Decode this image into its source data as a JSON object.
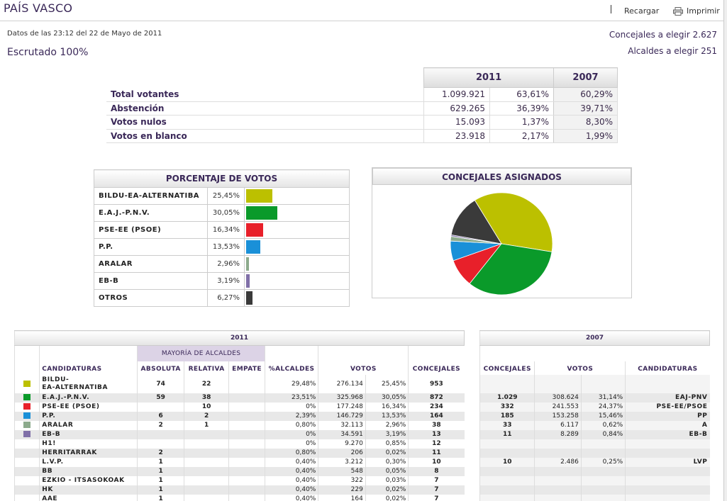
{
  "header": {
    "title": "PAÍS VASCO",
    "reload_label": "Recargar",
    "print_label": "Imprimir"
  },
  "info": {
    "date_line": "Datos de las 23:12  del 22 de Mayo de 2011",
    "escrutado": "Escrutado 100%",
    "concejales": "Concejales a elegir 2.627",
    "alcaldes": "Alcaldes a elegir 251"
  },
  "summary": {
    "year_current": "2011",
    "year_previous": "2007",
    "rows": [
      {
        "label": "Total votantes",
        "votes": "1.099.921",
        "pct": "63,61%",
        "pct_prev": "60,29%"
      },
      {
        "label": "Abstención",
        "votes": "629.265",
        "pct": "36,39%",
        "pct_prev": "39,71%"
      },
      {
        "label": "Votos nulos",
        "votes": "15.093",
        "pct": "1,37%",
        "pct_prev": "8,30%"
      },
      {
        "label": "Votos en blanco",
        "votes": "23.918",
        "pct": "2,17%",
        "pct_prev": "1,99%"
      }
    ]
  },
  "vote_pct": {
    "title": "PORCENTAJE DE VOTOS",
    "rows": [
      {
        "name": "BILDU-EA-ALTERNATIBA",
        "pct_label": "25,45%",
        "value": 25.45,
        "color": "#bcc000"
      },
      {
        "name": "E.A.J.-P.N.V.",
        "pct_label": "30,05%",
        "value": 30.05,
        "color": "#0a9a2a"
      },
      {
        "name": "PSE-EE (PSOE)",
        "pct_label": "16,34%",
        "value": 16.34,
        "color": "#e8202a"
      },
      {
        "name": "P.P.",
        "pct_label": "13,53%",
        "value": 13.53,
        "color": "#1a90d8"
      },
      {
        "name": "ARALAR",
        "pct_label": "2,96%",
        "value": 2.96,
        "color": "#8caa8c"
      },
      {
        "name": "EB-B",
        "pct_label": "3,19%",
        "value": 3.19,
        "color": "#8070a8"
      },
      {
        "name": "OTROS",
        "pct_label": "6,27%",
        "value": 6.27,
        "color": "#3a3a3a"
      }
    ]
  },
  "chart_data": {
    "type": "pie",
    "title": "CONCEJALES ASIGNADOS",
    "categories": [
      "BILDU-EA-ALTERNATIBA",
      "E.A.J.-P.N.V.",
      "PSE-EE (PSOE)",
      "P.P.",
      "ARALAR",
      "EB-B",
      "OTROS"
    ],
    "values": [
      953,
      872,
      234,
      164,
      38,
      13,
      353
    ],
    "colors": [
      "#bcc000",
      "#0a9a2a",
      "#e8202a",
      "#1a90d8",
      "#8caa8c",
      "#8070a8",
      "#3a3a3a"
    ]
  },
  "results": {
    "year_current": "2011",
    "year_previous": "2007",
    "mayoria_label": "MAYORÍA DE ALCALDES",
    "headers": {
      "candidaturas": "CANDIDATURAS",
      "absoluta": "ABSOLUTA",
      "relativa": "RELATIVA",
      "empate": "EMPATE",
      "pct_alcaldes": "%ALCALDES",
      "votos": "VOTOS",
      "concejales": "CONCEJALES"
    },
    "rows": [
      {
        "color": "#bcc000",
        "name": "BILDU-\nEA-ALTERNATIBA",
        "abs": "74",
        "rel": "22",
        "emp": "",
        "pct_alc": "29,48%",
        "votes": "276.134",
        "vpct": "25,45%",
        "conc": "953",
        "p_conc": "",
        "p_votes": "",
        "p_pct": "",
        "p_cand": ""
      },
      {
        "color": "#0a9a2a",
        "name": "E.A.J.-P.N.V.",
        "abs": "59",
        "rel": "38",
        "emp": "",
        "pct_alc": "23,51%",
        "votes": "325.968",
        "vpct": "30,05%",
        "conc": "872",
        "p_conc": "1.029",
        "p_votes": "308.624",
        "p_pct": "31,14%",
        "p_cand": "EAJ-PNV"
      },
      {
        "color": "#e8202a",
        "name": "PSE-EE (PSOE)",
        "abs": "",
        "rel": "10",
        "emp": "",
        "pct_alc": "0%",
        "votes": "177.248",
        "vpct": "16,34%",
        "conc": "234",
        "p_conc": "332",
        "p_votes": "241.553",
        "p_pct": "24,37%",
        "p_cand": "PSE-EE/PSOE"
      },
      {
        "color": "#1a90d8",
        "name": "P.P.",
        "abs": "6",
        "rel": "2",
        "emp": "",
        "pct_alc": "2,39%",
        "votes": "146.729",
        "vpct": "13,53%",
        "conc": "164",
        "p_conc": "185",
        "p_votes": "153.258",
        "p_pct": "15,46%",
        "p_cand": "PP"
      },
      {
        "color": "#8caa8c",
        "name": "ARALAR",
        "abs": "2",
        "rel": "1",
        "emp": "",
        "pct_alc": "0,80%",
        "votes": "32.113",
        "vpct": "2,96%",
        "conc": "38",
        "p_conc": "33",
        "p_votes": "6.117",
        "p_pct": "0,62%",
        "p_cand": "A"
      },
      {
        "color": "#8070a8",
        "name": "EB-B",
        "abs": "",
        "rel": "",
        "emp": "",
        "pct_alc": "0%",
        "votes": "34.591",
        "vpct": "3,19%",
        "conc": "13",
        "p_conc": "11",
        "p_votes": "8.289",
        "p_pct": "0,84%",
        "p_cand": "EB-B"
      },
      {
        "color": "",
        "name": "H1!",
        "abs": "",
        "rel": "",
        "emp": "",
        "pct_alc": "0%",
        "votes": "9.270",
        "vpct": "0,85%",
        "conc": "12",
        "p_conc": "",
        "p_votes": "",
        "p_pct": "",
        "p_cand": ""
      },
      {
        "color": "",
        "name": "HERRITARRAK",
        "abs": "2",
        "rel": "",
        "emp": "",
        "pct_alc": "0,80%",
        "votes": "206",
        "vpct": "0,02%",
        "conc": "11",
        "p_conc": "",
        "p_votes": "",
        "p_pct": "",
        "p_cand": ""
      },
      {
        "color": "",
        "name": "L.V.P.",
        "abs": "1",
        "rel": "",
        "emp": "",
        "pct_alc": "0,40%",
        "votes": "3.212",
        "vpct": "0,30%",
        "conc": "10",
        "p_conc": "10",
        "p_votes": "2.486",
        "p_pct": "0,25%",
        "p_cand": "LVP"
      },
      {
        "color": "",
        "name": "BB",
        "abs": "1",
        "rel": "",
        "emp": "",
        "pct_alc": "0,40%",
        "votes": "548",
        "vpct": "0,05%",
        "conc": "8",
        "p_conc": "",
        "p_votes": "",
        "p_pct": "",
        "p_cand": ""
      },
      {
        "color": "",
        "name": "EZKIO - ITSASOKOAK",
        "abs": "1",
        "rel": "",
        "emp": "",
        "pct_alc": "0,40%",
        "votes": "322",
        "vpct": "0,03%",
        "conc": "7",
        "p_conc": "",
        "p_votes": "",
        "p_pct": "",
        "p_cand": ""
      },
      {
        "color": "",
        "name": "HK",
        "abs": "1",
        "rel": "",
        "emp": "",
        "pct_alc": "0,40%",
        "votes": "229",
        "vpct": "0,02%",
        "conc": "7",
        "p_conc": "",
        "p_votes": "",
        "p_pct": "",
        "p_cand": ""
      },
      {
        "color": "",
        "name": "AAE",
        "abs": "1",
        "rel": "",
        "emp": "",
        "pct_alc": "0,40%",
        "votes": "164",
        "vpct": "0,02%",
        "conc": "7",
        "p_conc": "",
        "p_votes": "",
        "p_pct": "",
        "p_cand": ""
      }
    ]
  }
}
